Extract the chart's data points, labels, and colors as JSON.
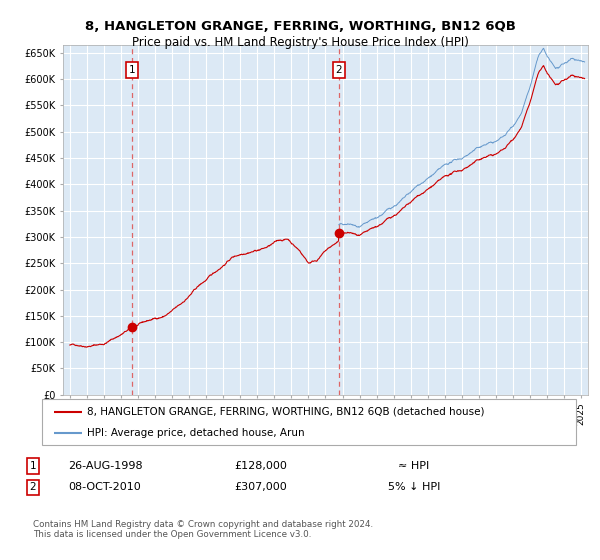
{
  "title1": "8, HANGLETON GRANGE, FERRING, WORTHING, BN12 6QB",
  "title2": "Price paid vs. HM Land Registry's House Price Index (HPI)",
  "legend_label_red": "8, HANGLETON GRANGE, FERRING, WORTHING, BN12 6QB (detached house)",
  "legend_label_blue": "HPI: Average price, detached house, Arun",
  "annotation1_date": "26-AUG-1998",
  "annotation1_price": "£128,000",
  "annotation1_hpi": "≈ HPI",
  "annotation2_date": "08-OCT-2010",
  "annotation2_price": "£307,000",
  "annotation2_hpi": "5% ↓ HPI",
  "footer": "Contains HM Land Registry data © Crown copyright and database right 2024.\nThis data is licensed under the Open Government Licence v3.0.",
  "sale1_year": 1998.65,
  "sale1_value": 128000,
  "sale2_year": 2010.77,
  "sale2_value": 307000,
  "yticks": [
    0,
    50000,
    100000,
    150000,
    200000,
    250000,
    300000,
    350000,
    400000,
    450000,
    500000,
    550000,
    600000,
    650000
  ],
  "background_color": "#dce9f5",
  "grid_color": "#ffffff",
  "red_color": "#cc0000",
  "blue_color": "#6699cc",
  "vline_color": "#dd6666"
}
